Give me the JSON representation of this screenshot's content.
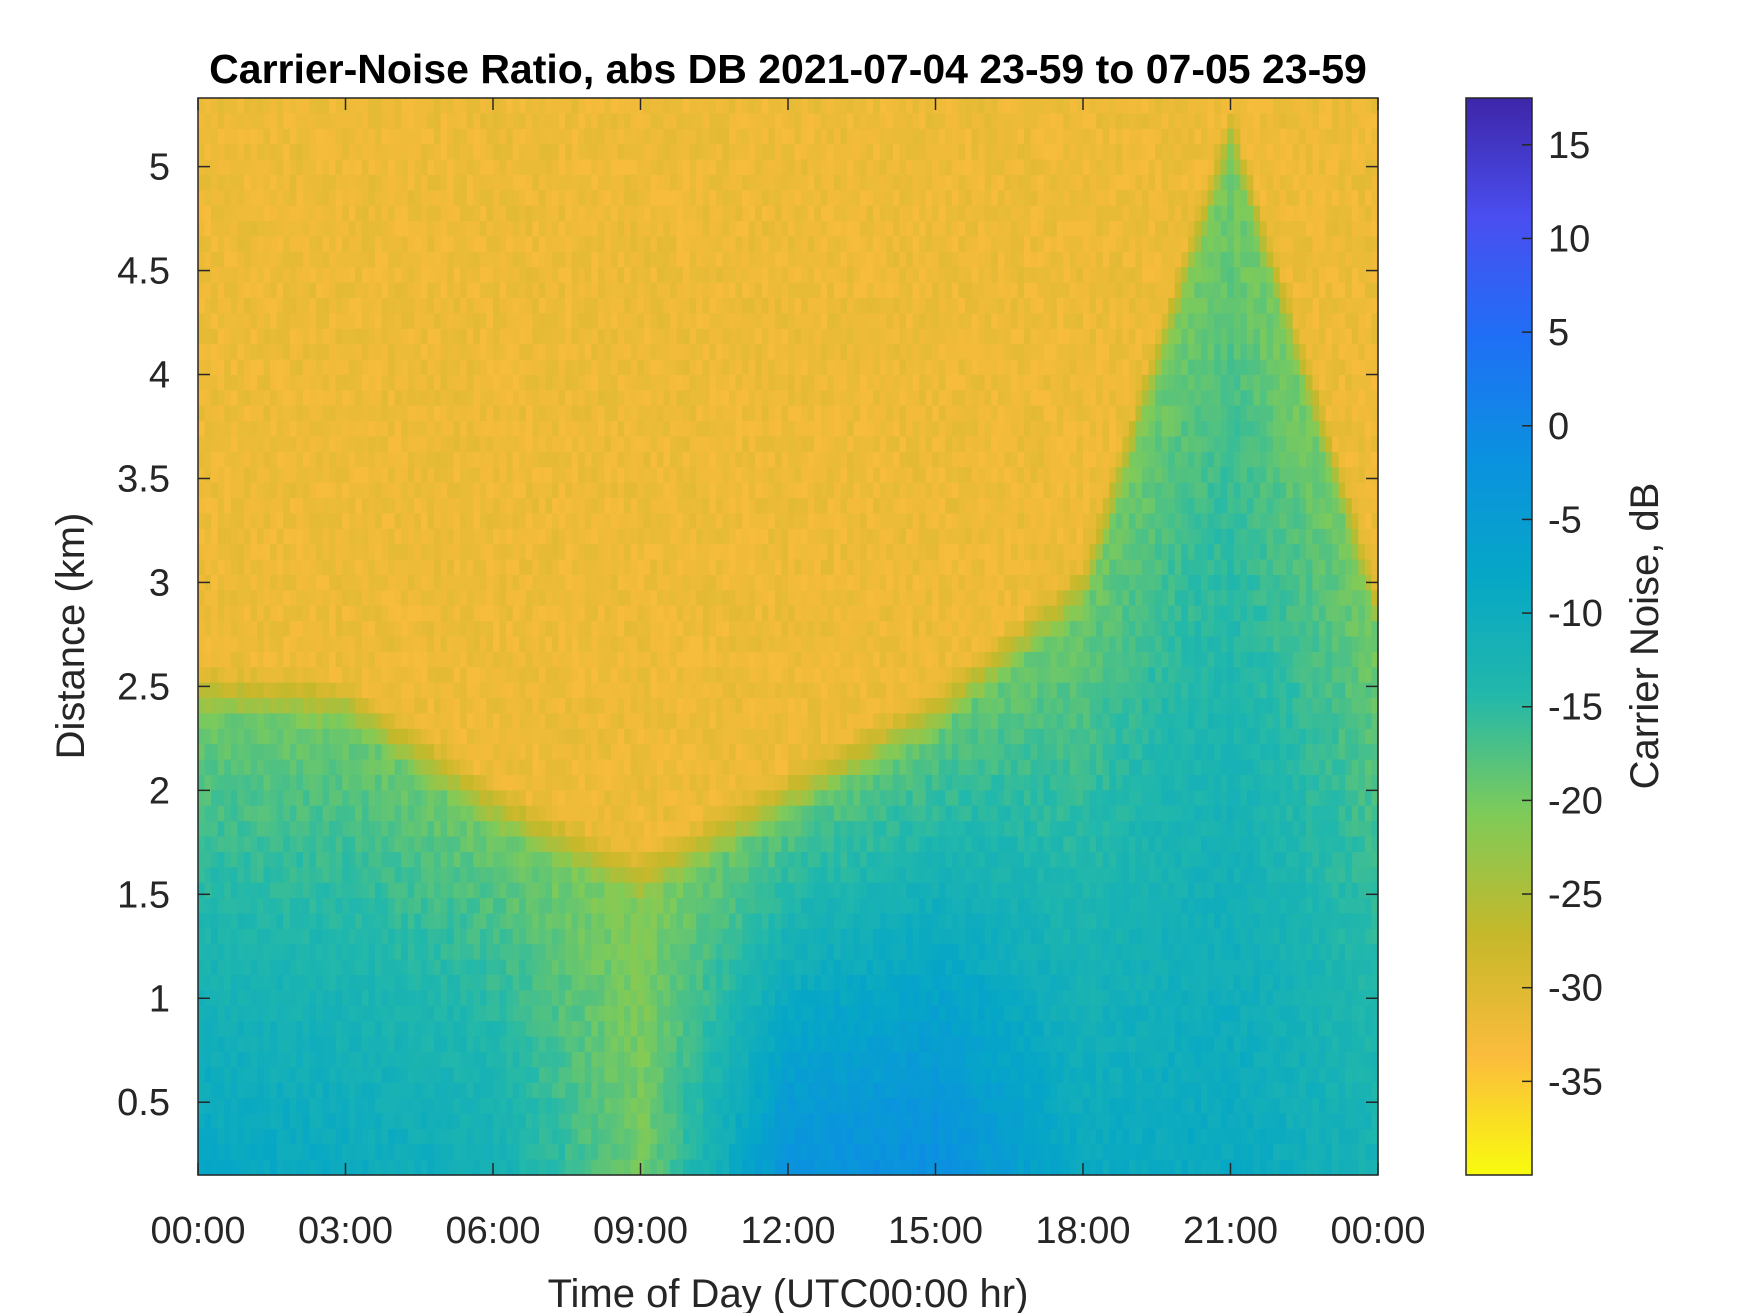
{
  "chart_data": {
    "type": "heatmap",
    "title": "Carrier-Noise Ratio, abs DB 2021-07-04 23-59 to 07-05 23-59",
    "xlabel": "Time of Day (UTC00:00 hr)",
    "ylabel": "Distance (km)",
    "colorbar_label": "Carrier Noise, dB",
    "x_ticks": [
      "00:00",
      "03:00",
      "06:00",
      "09:00",
      "12:00",
      "15:00",
      "18:00",
      "21:00",
      "00:00"
    ],
    "xlim_hours": [
      0,
      24
    ],
    "y_ticks": [
      0.5,
      1,
      1.5,
      2,
      2.5,
      3,
      3.5,
      4,
      4.5,
      5
    ],
    "y_tick_labels": [
      "0.5",
      "1",
      "1.5",
      "2",
      "2.5",
      "3",
      "3.5",
      "4",
      "4.5",
      "5"
    ],
    "ylim_km": [
      0.15,
      5.33
    ],
    "colorbar_ticks": [
      15,
      10,
      5,
      0,
      -5,
      -10,
      -15,
      -20,
      -25,
      -30,
      -35
    ],
    "colorbar_tick_labels": [
      "15",
      "10",
      "5",
      "0",
      "-5",
      "-10",
      "-15",
      "-20",
      "-25",
      "-30",
      "-35"
    ],
    "clim_db": [
      -40,
      17.5
    ],
    "colormap": "parula-reversed",
    "colormap_stops": [
      "#f9fb0e",
      "#fbbc3d",
      "#c6b82a",
      "#80cb58",
      "#23b8aa",
      "#06a7c6",
      "#0b91e0",
      "#1f6ff5",
      "#4a4ef0",
      "#3e26a8"
    ],
    "field": {
      "background_db": -32,
      "low_layer_db_by_hour": [
        {
          "hour": 0,
          "top_km": 2.6,
          "near_ground_db": -8
        },
        {
          "hour": 3,
          "top_km": 2.55,
          "near_ground_db": -9
        },
        {
          "hour": 6,
          "top_km": 2.05,
          "near_ground_db": -11
        },
        {
          "hour": 9,
          "top_km": 1.7,
          "near_ground_db": -20
        },
        {
          "hour": 12,
          "top_km": 2.1,
          "near_ground_db": -2
        },
        {
          "hour": 15,
          "top_km": 2.5,
          "near_ground_db": -1
        },
        {
          "hour": 18,
          "top_km": 3.1,
          "near_ground_db": -9
        },
        {
          "hour": 21,
          "top_km": 5.3,
          "near_ground_db": -9
        },
        {
          "hour": 24,
          "top_km": 3.0,
          "near_ground_db": -12
        }
      ]
    }
  }
}
